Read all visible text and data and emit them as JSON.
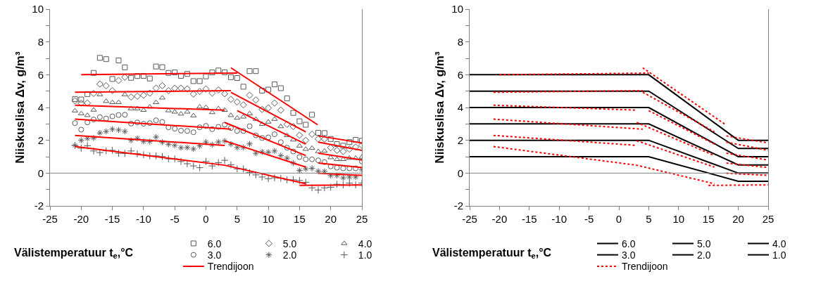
{
  "chart_data": [
    {
      "type": "scatter",
      "xlabel": "Välistemperatuur t$_{e}$,°C",
      "ylabel": "Niiskuslisa Δv, g/m³",
      "xlim": [
        -25,
        25
      ],
      "xticks": [
        -25,
        -20,
        -15,
        -10,
        -5,
        0,
        5,
        10,
        15,
        20,
        25
      ],
      "ylim": [
        -2,
        10
      ],
      "yticks": [
        -2,
        {
          "value": -1,
          "label": null
        },
        0,
        {
          "value": 1,
          "label": null
        },
        2,
        {
          "value": 3,
          "label": null
        },
        4,
        {
          "value": 5,
          "label": null
        },
        6,
        {
          "value": 7,
          "label": null
        },
        8,
        {
          "value": 9,
          "label": null
        },
        10
      ],
      "grid": false,
      "legend": "bottom",
      "ref_lines": [
        {
          "axis": "y",
          "value": 0,
          "color": "#808080"
        }
      ],
      "x": [
        -21,
        -20,
        -19,
        -18,
        -17,
        -16,
        -15,
        -14,
        -13,
        -12,
        -11,
        -10,
        -9,
        -8,
        -7,
        -6,
        -5,
        -4,
        -3,
        -2,
        -1,
        0,
        1,
        2,
        3,
        4,
        5,
        6,
        7,
        8,
        9,
        10,
        11,
        12,
        13,
        14,
        15,
        16,
        17,
        18,
        19,
        20,
        21,
        22,
        23,
        24,
        25
      ],
      "series": [
        {
          "name": "6.0",
          "type": "scatter",
          "marker": "square",
          "color": "#595959",
          "values": [
            4.52,
            4.49,
            4.82,
            6.11,
            7.03,
            6.95,
            5.74,
            6.87,
            6.45,
            5.81,
            5.92,
            5.93,
            5.77,
            6.5,
            6.46,
            6.11,
            6.14,
            5.93,
            6.05,
            5.61,
            5.61,
            5.9,
            6.14,
            6.26,
            6.15,
            5.85,
            5.8,
            5.27,
            6.22,
            6.22,
            5.03,
            5.09,
            5.41,
            5.18,
            4.56,
            3.67,
            3.16,
            2.95,
            3.56,
            2.46,
            2.44,
            2.08,
            1.77,
            1.67,
            1.89,
            2.03,
            1.97
          ]
        },
        {
          "name": "5.0",
          "type": "scatter",
          "marker": "diamond",
          "color": "#595959",
          "values": [
            4.41,
            4.27,
            4.27,
            4.86,
            5.43,
            5.33,
            5.03,
            5.65,
            5.85,
            4.64,
            4.69,
            4.75,
            4.88,
            5.18,
            5.33,
            5.03,
            5.18,
            5.18,
            5.13,
            4.82,
            4.98,
            5.13,
            4.88,
            5.07,
            4.84,
            4.5,
            4.34,
            4.16,
            4.75,
            4.46,
            3.88,
            3.97,
            4.27,
            3.84,
            2.98,
            2.84,
            2.31,
            2.0,
            2.37,
            2.08,
            2.08,
            1.55,
            1.39,
            1.32,
            1.46,
            1.59,
            1.69
          ]
        },
        {
          "name": "4.0",
          "type": "scatter",
          "marker": "triangle",
          "color": "#595959",
          "values": [
            3.8,
            3.63,
            3.52,
            3.85,
            4.79,
            4.38,
            4.31,
            4.31,
            4.79,
            3.93,
            3.93,
            3.84,
            4.04,
            4.31,
            4.59,
            3.81,
            3.73,
            3.61,
            3.73,
            3.5,
            4.04,
            4.01,
            3.7,
            3.93,
            3.84,
            3.52,
            3.36,
            3.43,
            3.63,
            3.29,
            2.98,
            3.12,
            3.29,
            2.84,
            2.3,
            2.03,
            1.66,
            1.46,
            1.52,
            1.32,
            1.35,
            0.95,
            0.84,
            0.84,
            0.91,
            0.91,
            0.98
          ]
        },
        {
          "name": "3.0",
          "type": "scatter",
          "marker": "circle",
          "color": "#595959",
          "values": [
            3.05,
            2.65,
            3.09,
            3.27,
            3.41,
            3.33,
            3.46,
            3.54,
            3.56,
            3.02,
            3.09,
            3.01,
            3.05,
            3.22,
            3.12,
            2.79,
            2.71,
            2.59,
            2.57,
            2.49,
            2.79,
            2.88,
            2.68,
            2.82,
            2.95,
            2.75,
            2.57,
            2.57,
            2.86,
            2.3,
            2.14,
            2.18,
            2.37,
            1.89,
            1.55,
            1.32,
            0.98,
            0.84,
            0.84,
            0.78,
            0.67,
            0.41,
            0.33,
            0.29,
            0.29,
            0.29,
            0.71
          ]
        },
        {
          "name": "2.0",
          "type": "scatter",
          "color": "#595959",
          "values": [
            1.69,
            2.0,
            2.11,
            2.14,
            2.45,
            2.54,
            2.68,
            2.63,
            2.54,
            2.0,
            2.11,
            1.93,
            1.93,
            2.2,
            1.89,
            1.76,
            1.69,
            1.55,
            1.56,
            1.47,
            1.66,
            1.89,
            1.73,
            1.9,
            1.96,
            1.76,
            1.56,
            1.56,
            1.78,
            1.21,
            1.29,
            1.28,
            1.35,
            1.07,
            0.91,
            0.61,
            0.16,
            0.26,
            0.29,
            0.12,
            0.1,
            -0.15,
            -0.15,
            -0.29,
            -0.24,
            -0.24,
            0.2
          ]
        },
        {
          "name": "1.0",
          "type": "scatter",
          "marker": "cross",
          "color": "#595959",
          "values": [
            1.69,
            1.52,
            1.67,
            1.35,
            1.25,
            1.36,
            1.39,
            1.21,
            1.2,
            1.35,
            1.18,
            1.12,
            1.05,
            1.05,
            1.01,
            0.87,
            0.87,
            0.71,
            0.57,
            0.44,
            0.33,
            0.71,
            0.44,
            0.64,
            0.78,
            0.5,
            0.26,
            0.26,
            0.03,
            -0.11,
            -0.24,
            -0.34,
            -0.29,
            -0.31,
            -0.41,
            -0.41,
            -0.45,
            -0.56,
            -0.9,
            -1.03,
            -0.9,
            -0.86,
            -0.68,
            -0.72,
            -0.61,
            -0.72,
            -0.61
          ]
        },
        {
          "name": "Trendijoon",
          "type": "line",
          "line_style": "solid",
          "color": "#ff0000",
          "x": [
            -20,
            5
          ],
          "values": [
            6.0,
            6.1
          ]
        },
        {
          "type": "line",
          "line_style": "solid",
          "color": "#ff0000",
          "x": [
            4,
            17.9
          ],
          "values": [
            6.42,
            2.95
          ]
        },
        {
          "type": "line",
          "line_style": "solid",
          "color": "#ff0000",
          "x": [
            18,
            25
          ],
          "values": [
            2.27,
            1.84
          ]
        },
        {
          "type": "line",
          "line_style": "solid",
          "color": "#ff0000",
          "x": [
            -21,
            4
          ],
          "values": [
            4.93,
            5.03
          ]
        },
        {
          "type": "line",
          "line_style": "solid",
          "color": "#ff0000",
          "x": [
            4,
            16
          ],
          "values": [
            4.93,
            2.52
          ]
        },
        {
          "type": "line",
          "line_style": "solid",
          "color": "#ff0000",
          "x": [
            18,
            25
          ],
          "values": [
            1.89,
            1.39
          ]
        },
        {
          "type": "line",
          "line_style": "solid",
          "color": "#ff0000",
          "x": [
            -21,
            3
          ],
          "values": [
            4.14,
            3.84
          ]
        },
        {
          "type": "line",
          "line_style": "solid",
          "color": "#ff0000",
          "x": [
            5,
            16
          ],
          "values": [
            3.81,
            1.77
          ]
        },
        {
          "type": "line",
          "line_style": "solid",
          "color": "#ff0000",
          "x": [
            18,
            25
          ],
          "values": [
            1.21,
            0.8
          ]
        },
        {
          "type": "line",
          "line_style": "solid",
          "color": "#ff0000",
          "x": [
            -21,
            4
          ],
          "values": [
            3.29,
            2.68
          ]
        },
        {
          "type": "line",
          "line_style": "solid",
          "color": "#ff0000",
          "x": [
            3,
            16
          ],
          "values": [
            3.09,
            1.07
          ]
        },
        {
          "type": "line",
          "line_style": "solid",
          "color": "#ff0000",
          "x": [
            18,
            25
          ],
          "values": [
            0.61,
            0.34
          ]
        },
        {
          "type": "line",
          "line_style": "solid",
          "color": "#ff0000",
          "x": [
            -21,
            3
          ],
          "values": [
            2.3,
            1.69
          ]
        },
        {
          "type": "line",
          "line_style": "solid",
          "color": "#ff0000",
          "x": [
            3,
            16
          ],
          "values": [
            1.97,
            0.37
          ]
        },
        {
          "type": "line",
          "line_style": "solid",
          "color": "#ff0000",
          "x": [
            18,
            25
          ],
          "values": [
            -0.01,
            -0.14
          ]
        },
        {
          "type": "line",
          "line_style": "solid",
          "color": "#ff0000",
          "x": [
            -21,
            3,
            16
          ],
          "values": [
            1.62,
            0.48,
            -0.65
          ]
        },
        {
          "type": "line",
          "line_style": "solid",
          "color": "#ff0000",
          "x": [
            15,
            25
          ],
          "values": [
            -0.75,
            -0.72
          ]
        }
      ]
    },
    {
      "type": "line",
      "xlabel": "Välistemperatuur t$_{e}$,°C",
      "ylabel": "Niiskuslisa Δv, g/m³",
      "xlim": [
        -25,
        25
      ],
      "xticks": [
        -25,
        -20,
        -15,
        -10,
        -5,
        0,
        5,
        10,
        15,
        20,
        25
      ],
      "ylim": [
        -2,
        10
      ],
      "yticks": [
        -2,
        {
          "value": -1,
          "label": null
        },
        0,
        {
          "value": 1,
          "label": null
        },
        2,
        {
          "value": 3,
          "label": null
        },
        4,
        {
          "value": 5,
          "label": null
        },
        6,
        {
          "value": 7,
          "label": null
        },
        8,
        {
          "value": 9,
          "label": null
        },
        10
      ],
      "grid": false,
      "legend": "bottom",
      "ref_lines": [
        {
          "axis": "y",
          "value": 0,
          "color": "#808080"
        }
      ],
      "x": [
        -25,
        5,
        20,
        25
      ],
      "series": [
        {
          "name": "6.0",
          "type": "line",
          "line_style": "solid",
          "color": "#000000",
          "values": [
            6,
            6,
            2,
            2
          ]
        },
        {
          "name": "5.0",
          "type": "line",
          "line_style": "solid",
          "color": "#000000",
          "values": [
            5,
            5,
            1.5,
            1.5
          ]
        },
        {
          "name": "4.0",
          "type": "line",
          "line_style": "solid",
          "color": "#000000",
          "values": [
            4,
            4,
            1,
            1
          ]
        },
        {
          "name": "3.0",
          "type": "line",
          "line_style": "solid",
          "color": "#000000",
          "values": [
            3,
            3,
            0.5,
            0.5
          ]
        },
        {
          "name": "2.0",
          "type": "line",
          "line_style": "solid",
          "color": "#000000",
          "values": [
            2,
            2,
            0,
            0
          ]
        },
        {
          "name": "1.0",
          "type": "line",
          "line_style": "solid",
          "color": "#000000",
          "values": [
            1,
            1,
            -0.5,
            -0.5
          ]
        },
        {
          "name": "Trendijoon",
          "type": "line",
          "line_style": "dotted",
          "color": "#ff0000",
          "x": [
            -20,
            5
          ],
          "values": [
            6.0,
            6.1
          ]
        },
        {
          "line_style": "dotted",
          "color": "#ff0000",
          "x": [
            4,
            17.9
          ],
          "values": [
            6.42,
            2.95
          ]
        },
        {
          "line_style": "dotted",
          "color": "#ff0000",
          "x": [
            18,
            25
          ],
          "values": [
            2.27,
            1.84
          ]
        },
        {
          "line_style": "dotted",
          "color": "#ff0000",
          "x": [
            -21,
            4
          ],
          "values": [
            4.93,
            5.03
          ]
        },
        {
          "line_style": "dotted",
          "color": "#ff0000",
          "x": [
            4,
            16
          ],
          "values": [
            4.93,
            2.52
          ]
        },
        {
          "line_style": "dotted",
          "color": "#ff0000",
          "x": [
            18,
            25
          ],
          "values": [
            1.89,
            1.39
          ]
        },
        {
          "line_style": "dotted",
          "color": "#ff0000",
          "x": [
            -21,
            3
          ],
          "values": [
            4.14,
            3.84
          ]
        },
        {
          "line_style": "dotted",
          "color": "#ff0000",
          "x": [
            5,
            16
          ],
          "values": [
            3.81,
            1.77
          ]
        },
        {
          "line_style": "dotted",
          "color": "#ff0000",
          "x": [
            18,
            25
          ],
          "values": [
            1.21,
            0.8
          ]
        },
        {
          "line_style": "dotted",
          "color": "#ff0000",
          "x": [
            -21,
            4
          ],
          "values": [
            3.29,
            2.68
          ]
        },
        {
          "line_style": "dotted",
          "color": "#ff0000",
          "x": [
            3,
            16
          ],
          "values": [
            3.09,
            1.07
          ]
        },
        {
          "line_style": "dotted",
          "color": "#ff0000",
          "x": [
            18,
            25
          ],
          "values": [
            0.61,
            0.34
          ]
        },
        {
          "line_style": "dotted",
          "color": "#ff0000",
          "x": [
            -21,
            3
          ],
          "values": [
            2.3,
            1.69
          ]
        },
        {
          "line_style": "dotted",
          "color": "#ff0000",
          "x": [
            3,
            16
          ],
          "values": [
            1.97,
            0.37
          ]
        },
        {
          "line_style": "dotted",
          "color": "#ff0000",
          "x": [
            18,
            25
          ],
          "values": [
            -0.01,
            -0.14
          ]
        },
        {
          "line_style": "dotted",
          "color": "#ff0000",
          "x": [
            -21,
            3,
            16
          ],
          "values": [
            1.62,
            0.48,
            -0.65
          ]
        },
        {
          "line_style": "dotted",
          "color": "#ff0000",
          "x": [
            15,
            25
          ],
          "values": [
            -0.75,
            -0.72
          ]
        }
      ]
    }
  ]
}
